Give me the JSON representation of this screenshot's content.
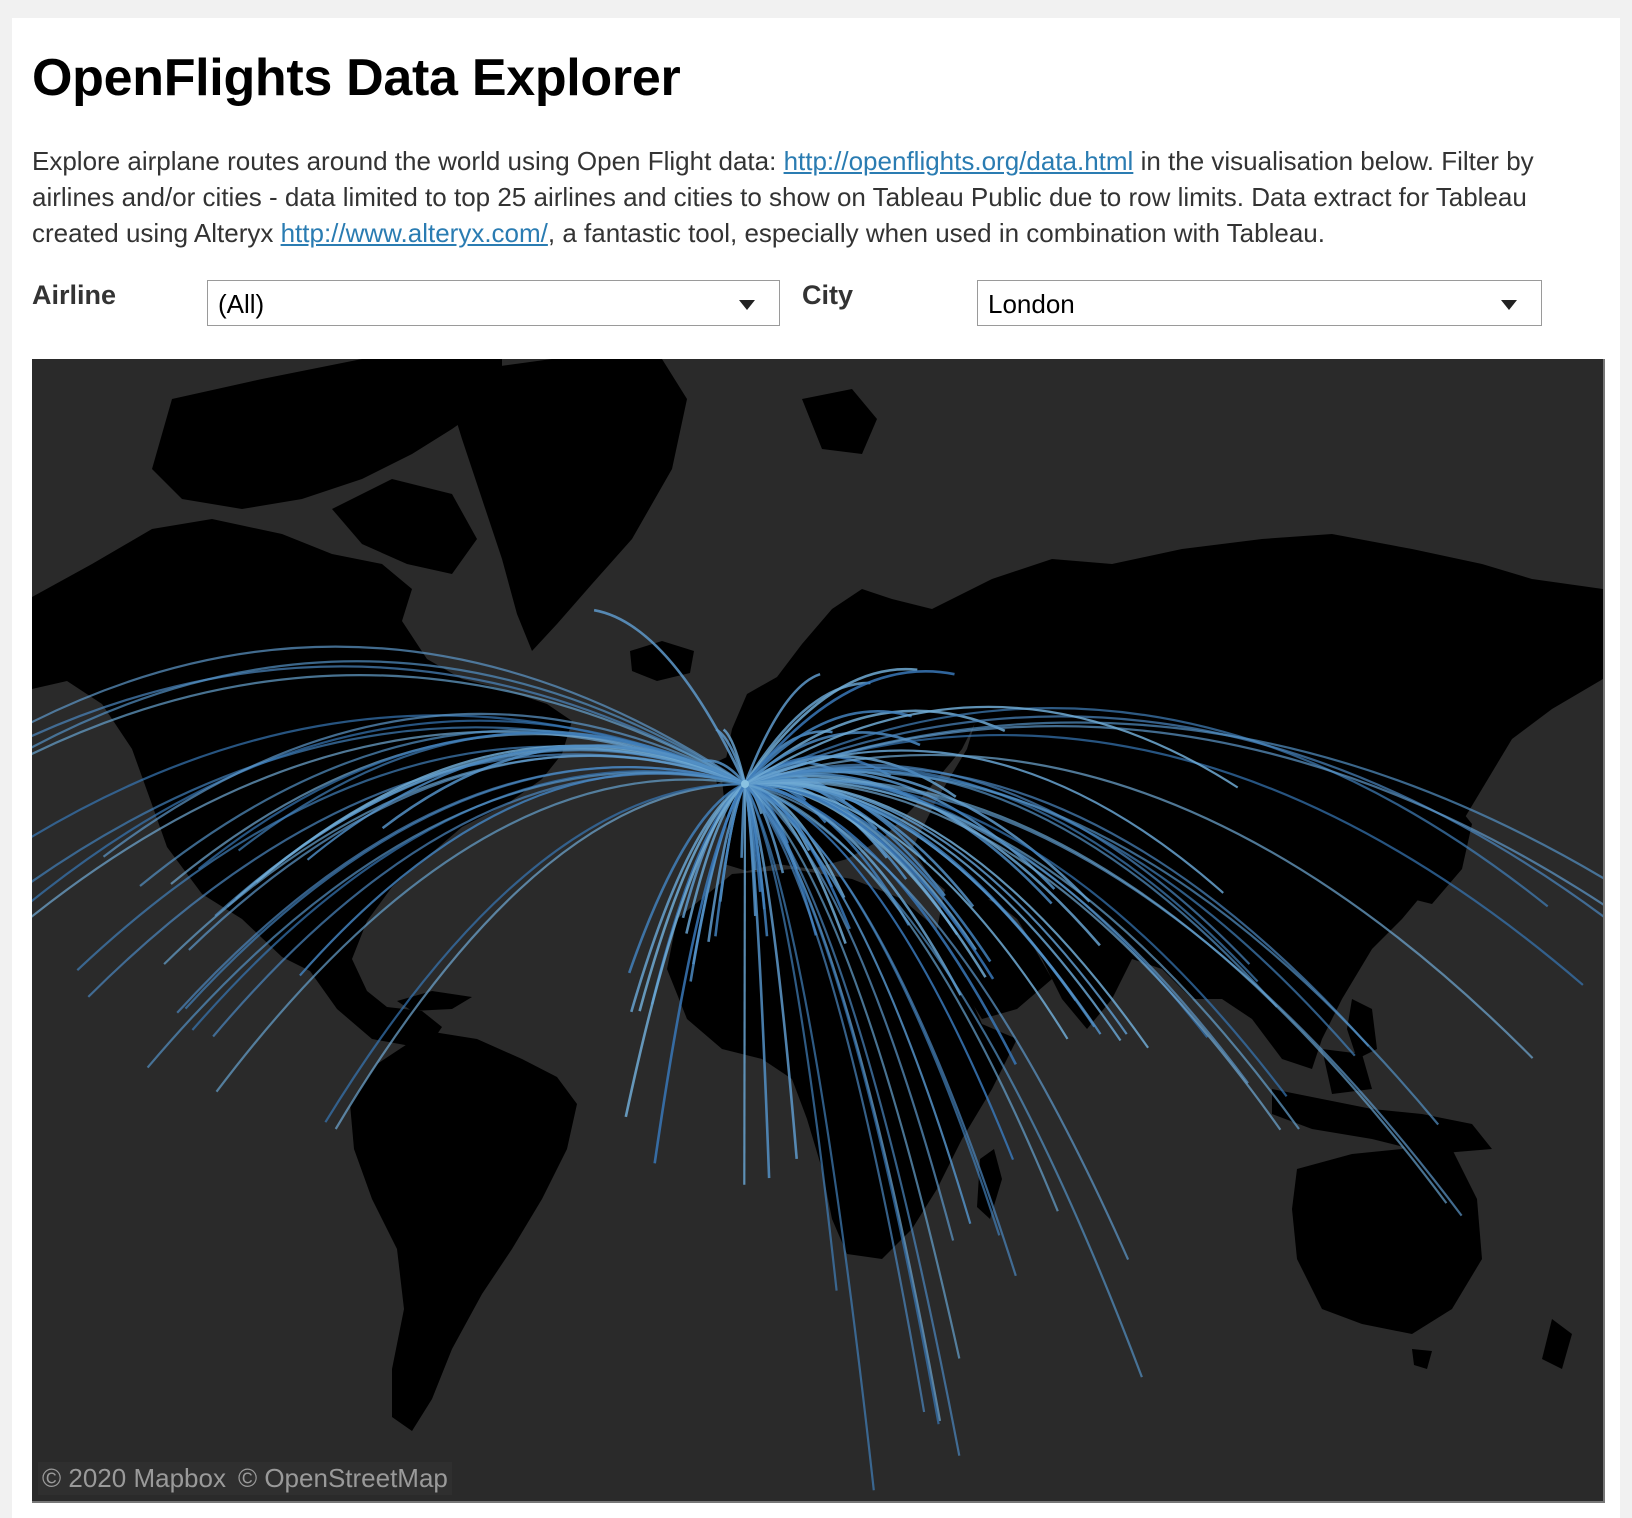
{
  "page": {
    "title": "OpenFlights Data Explorer",
    "intro": {
      "t1": "Explore airplane routes around the world using Open Flight data: ",
      "link1": "http://openflights.org/data.html",
      "t2": " in the visualisation below. Filter by airlines and/or cities - data limited to top 25 airlines and cities to show on Tableau Public due to row limits. Data extract for Tableau created using Alteryx ",
      "link2": "http://www.alteryx.com/",
      "t3": ", a fantastic tool, especially when used in combination with Tableau."
    }
  },
  "filters": {
    "airline": {
      "label": "Airline",
      "value": "(All)"
    },
    "city": {
      "label": "City",
      "value": "London"
    }
  },
  "map": {
    "attribution": [
      "© 2020 Mapbox",
      "© OpenStreetMap"
    ],
    "colors": {
      "water": "#2a2a2a",
      "land": "#000000",
      "route_start": "#1d5ea8",
      "route_end": "#8ac2e2"
    },
    "origin": {
      "name": "London",
      "lon": -0.1,
      "lat": 51.5
    },
    "destinations": [
      {
        "lon": -122.4,
        "lat": 37.8
      },
      {
        "lon": -118.4,
        "lat": 34.0
      },
      {
        "lon": -123.1,
        "lat": 49.3
      },
      {
        "lon": -114.1,
        "lat": 51.0
      },
      {
        "lon": -113.5,
        "lat": 53.5
      },
      {
        "lon": -122.3,
        "lat": 47.6
      },
      {
        "lon": -112.1,
        "lat": 33.4
      },
      {
        "lon": -104.9,
        "lat": 39.7
      },
      {
        "lon": -97.0,
        "lat": 32.9
      },
      {
        "lon": -95.4,
        "lat": 29.8
      },
      {
        "lon": -87.9,
        "lat": 42.0
      },
      {
        "lon": -93.2,
        "lat": 44.9
      },
      {
        "lon": -84.4,
        "lat": 33.6
      },
      {
        "lon": -83.4,
        "lat": 42.2
      },
      {
        "lon": -80.3,
        "lat": 25.8
      },
      {
        "lon": -81.3,
        "lat": 28.4
      },
      {
        "lon": -82.5,
        "lat": 27.9
      },
      {
        "lon": -77.0,
        "lat": 38.9
      },
      {
        "lon": -75.2,
        "lat": 39.9
      },
      {
        "lon": -74.0,
        "lat": 40.7
      },
      {
        "lon": -71.0,
        "lat": 42.4
      },
      {
        "lon": -79.4,
        "lat": 43.7
      },
      {
        "lon": -73.6,
        "lat": 45.5
      },
      {
        "lon": -63.6,
        "lat": 44.6
      },
      {
        "lon": -52.7,
        "lat": 47.6
      },
      {
        "lon": -80.8,
        "lat": 35.2
      },
      {
        "lon": -76.8,
        "lat": 18.0
      },
      {
        "lon": -59.5,
        "lat": 13.1
      },
      {
        "lon": -61.0,
        "lat": 14.0
      },
      {
        "lon": -64.7,
        "lat": 32.3
      },
      {
        "lon": -77.3,
        "lat": 25.0
      },
      {
        "lon": -86.8,
        "lat": 21.1
      },
      {
        "lon": -22.0,
        "lat": 64.0
      },
      {
        "lon": -16.6,
        "lat": 28.0
      },
      {
        "lon": -15.4,
        "lat": 28.1
      },
      {
        "lon": -13.6,
        "lat": 28.9
      },
      {
        "lon": -16.9,
        "lat": 32.6
      },
      {
        "lon": -8.0,
        "lat": 31.6
      },
      {
        "lon": -7.6,
        "lat": 33.6
      },
      {
        "lon": -9.1,
        "lat": 38.7
      },
      {
        "lon": -8.6,
        "lat": 37.0
      },
      {
        "lon": -3.7,
        "lat": 40.4
      },
      {
        "lon": 2.1,
        "lat": 41.4
      },
      {
        "lon": -4.4,
        "lat": 36.7
      },
      {
        "lon": 2.7,
        "lat": 39.6
      },
      {
        "lon": 1.4,
        "lat": 38.9
      },
      {
        "lon": -5.4,
        "lat": 36.1
      },
      {
        "lon": 2.3,
        "lat": 48.9
      },
      {
        "lon": 4.9,
        "lat": 52.4
      },
      {
        "lon": 8.7,
        "lat": 50.1
      },
      {
        "lon": 11.6,
        "lat": 48.1
      },
      {
        "lon": 13.4,
        "lat": 52.5
      },
      {
        "lon": 12.6,
        "lat": 55.7
      },
      {
        "lon": 10.8,
        "lat": 59.9
      },
      {
        "lon": 18.1,
        "lat": 59.3
      },
      {
        "lon": 24.9,
        "lat": 60.2
      },
      {
        "lon": 21.0,
        "lat": 52.2
      },
      {
        "lon": 14.4,
        "lat": 50.1
      },
      {
        "lon": 16.4,
        "lat": 48.2
      },
      {
        "lon": 19.0,
        "lat": 47.5
      },
      {
        "lon": 12.5,
        "lat": 41.9
      },
      {
        "lon": 9.2,
        "lat": 45.5
      },
      {
        "lon": 14.3,
        "lat": 40.8
      },
      {
        "lon": 15.1,
        "lat": 37.5
      },
      {
        "lon": 23.7,
        "lat": 37.9
      },
      {
        "lon": 28.9,
        "lat": 41.0
      },
      {
        "lon": 33.0,
        "lat": 39.9
      },
      {
        "lon": 30.7,
        "lat": 36.9
      },
      {
        "lon": 33.4,
        "lat": 35.2
      },
      {
        "lon": 14.5,
        "lat": 35.9
      },
      {
        "lon": 10.2,
        "lat": 36.8
      },
      {
        "lon": 3.1,
        "lat": 36.7
      },
      {
        "lon": 26.1,
        "lat": 44.4
      },
      {
        "lon": 23.3,
        "lat": 42.7
      },
      {
        "lon": 20.5,
        "lat": 44.8
      },
      {
        "lon": 30.5,
        "lat": 50.4
      },
      {
        "lon": 37.6,
        "lat": 55.8
      },
      {
        "lon": 30.3,
        "lat": 59.9
      },
      {
        "lon": 24.1,
        "lat": 56.9
      },
      {
        "lon": 25.3,
        "lat": 54.7
      },
      {
        "lon": -6.3,
        "lat": 53.4
      },
      {
        "lon": -4.3,
        "lat": 55.9
      },
      {
        "lon": -3.2,
        "lat": 55.9
      },
      {
        "lon": 2.9,
        "lat": 49.0
      },
      {
        "lon": 6.1,
        "lat": 46.2
      },
      {
        "lon": 7.4,
        "lat": 43.7
      },
      {
        "lon": 1.4,
        "lat": 43.6
      },
      {
        "lon": -0.6,
        "lat": 44.8
      },
      {
        "lon": 5.4,
        "lat": 43.3
      },
      {
        "lon": 31.2,
        "lat": 30.0
      },
      {
        "lon": 34.8,
        "lat": 32.1
      },
      {
        "lon": 35.9,
        "lat": 31.9
      },
      {
        "lon": 35.5,
        "lat": 33.9
      },
      {
        "lon": 44.4,
        "lat": 40.2
      },
      {
        "lon": 44.8,
        "lat": 41.7
      },
      {
        "lon": 49.9,
        "lat": 40.4
      },
      {
        "lon": 51.4,
        "lat": 35.7
      },
      {
        "lon": 46.7,
        "lat": 24.7
      },
      {
        "lon": 39.2,
        "lat": 21.5
      },
      {
        "lon": 47.9,
        "lat": 29.4
      },
      {
        "lon": 50.6,
        "lat": 26.2
      },
      {
        "lon": 51.5,
        "lat": 25.3
      },
      {
        "lon": 55.3,
        "lat": 25.3
      },
      {
        "lon": 54.4,
        "lat": 24.5
      },
      {
        "lon": 58.4,
        "lat": 23.6
      },
      {
        "lon": 67.0,
        "lat": 24.9
      },
      {
        "lon": 74.3,
        "lat": 31.6
      },
      {
        "lon": 73.1,
        "lat": 33.6
      },
      {
        "lon": 77.1,
        "lat": 28.6
      },
      {
        "lon": 72.9,
        "lat": 19.1
      },
      {
        "lon": 80.3,
        "lat": 13.1
      },
      {
        "lon": 77.6,
        "lat": 13.0
      },
      {
        "lon": 78.5,
        "lat": 17.4
      },
      {
        "lon": 88.4,
        "lat": 22.6
      },
      {
        "lon": 90.4,
        "lat": 23.8
      },
      {
        "lon": 100.5,
        "lat": 13.7
      },
      {
        "lon": 103.9,
        "lat": 1.4
      },
      {
        "lon": 101.7,
        "lat": 3.1
      },
      {
        "lon": 114.2,
        "lat": 22.3
      },
      {
        "lon": 121.5,
        "lat": 31.2
      },
      {
        "lon": 116.4,
        "lat": 39.9
      },
      {
        "lon": 126.9,
        "lat": 37.5
      },
      {
        "lon": 139.7,
        "lat": 35.6
      },
      {
        "lon": 135.4,
        "lat": 34.4
      },
      {
        "lon": 69.3,
        "lat": 41.3
      },
      {
        "lon": 71.4,
        "lat": 51.2
      },
      {
        "lon": 38.8,
        "lat": 9.0
      },
      {
        "lon": 36.8,
        "lat": -1.3
      },
      {
        "lon": 39.2,
        "lat": -6.8
      },
      {
        "lon": 32.6,
        "lat": 0.3
      },
      {
        "lon": 30.1,
        "lat": -2.0
      },
      {
        "lon": 31.0,
        "lat": -17.8
      },
      {
        "lon": 28.2,
        "lat": -25.7
      },
      {
        "lon": 28.0,
        "lat": -26.1
      },
      {
        "lon": 18.6,
        "lat": -33.9
      },
      {
        "lon": 31.0,
        "lat": -29.9
      },
      {
        "lon": 3.4,
        "lat": 6.5
      },
      {
        "lon": 7.4,
        "lat": 9.1
      },
      {
        "lon": -0.2,
        "lat": 5.6
      },
      {
        "lon": -17.4,
        "lat": 14.7
      },
      {
        "lon": -13.2,
        "lat": 8.5
      },
      {
        "lon": 13.2,
        "lat": -8.8
      },
      {
        "lon": 25.9,
        "lat": -24.6
      },
      {
        "lon": 57.5,
        "lat": -20.2
      },
      {
        "lon": 55.5,
        "lat": -4.6
      },
      {
        "lon": 45.3,
        "lat": 2.0
      }
    ]
  }
}
